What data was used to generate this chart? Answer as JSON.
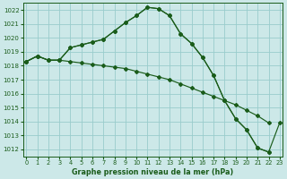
{
  "title": "Graphe pression niveau de la mer (hPa)",
  "bg_color": "#cce8e8",
  "grid_color": "#99cccc",
  "line_color": "#1a5c1a",
  "xlim": [
    -0.3,
    23.3
  ],
  "ylim": [
    1011.5,
    1022.5
  ],
  "yticks": [
    1012,
    1013,
    1014,
    1015,
    1016,
    1017,
    1018,
    1019,
    1020,
    1021,
    1022
  ],
  "xticks": [
    0,
    1,
    2,
    3,
    4,
    5,
    6,
    7,
    8,
    9,
    10,
    11,
    12,
    13,
    14,
    15,
    16,
    17,
    18,
    19,
    20,
    21,
    22,
    23
  ],
  "series": [
    [
      1018.3,
      1018.7,
      1018.4,
      1018.4,
      1018.3,
      1018.2,
      1018.1,
      1018.0,
      1017.9,
      1017.8,
      1017.6,
      1017.4,
      1017.2,
      1017.0,
      1016.7,
      1016.4,
      1016.1,
      1015.8,
      1015.5,
      1015.2,
      1014.8,
      1014.4,
      1013.9,
      null
    ],
    [
      1018.3,
      1018.7,
      1018.4,
      1018.4,
      1019.3,
      1019.5,
      1019.7,
      1019.9,
      1020.5,
      1021.1,
      1021.6,
      1022.2,
      1022.1,
      1021.6,
      1020.3,
      1019.6,
      1018.6,
      1017.3,
      1015.5,
      1014.2,
      1013.4,
      1012.1,
      1011.8,
      null
    ],
    [
      1018.3,
      1018.7,
      1018.4,
      1018.4,
      1019.3,
      1019.5,
      1019.7,
      1019.9,
      1020.5,
      1021.1,
      1021.6,
      1022.2,
      1022.1,
      1021.6,
      1020.3,
      1019.6,
      1018.6,
      1017.3,
      1015.5,
      1014.2,
      1013.4,
      1012.1,
      1011.8,
      1013.9
    ]
  ]
}
